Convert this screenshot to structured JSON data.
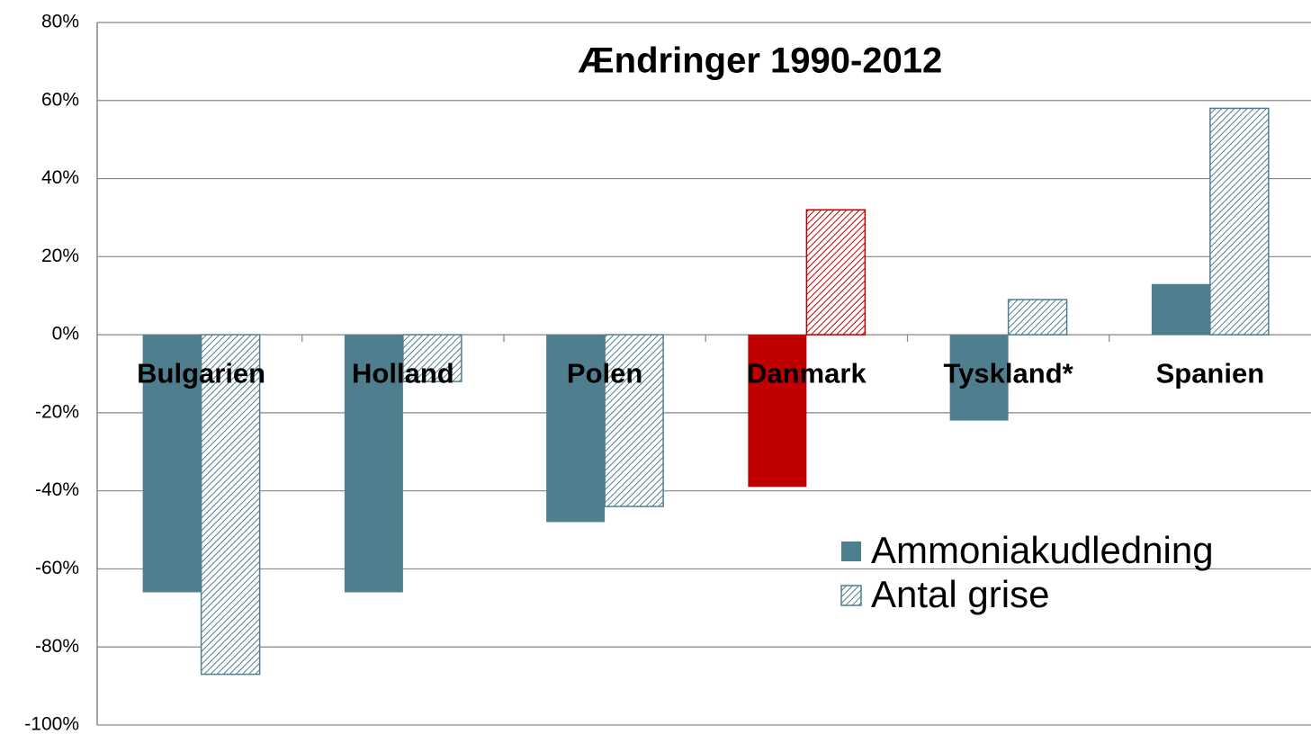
{
  "chart_data": {
    "type": "bar",
    "title": "Ændringer 1990-2012",
    "categories": [
      "Bulgarien",
      "Holland",
      "Polen",
      "Danmark",
      "Tyskland*",
      "Spanien"
    ],
    "series": [
      {
        "name": "Ammoniakudledning",
        "color": "#4f7f8e",
        "pattern": "solid",
        "point_colors": [
          "#4f7f8e",
          "#4f7f8e",
          "#4f7f8e",
          "#c00000",
          "#4f7f8e",
          "#4f7f8e"
        ],
        "values": [
          -66,
          -66,
          -48,
          -39,
          -22,
          13
        ]
      },
      {
        "name": "Antal grise",
        "color": "#4f7f8e",
        "pattern": "hatch",
        "point_colors": [
          "#4f7f8e",
          "#4f7f8e",
          "#4f7f8e",
          "#c00000",
          "#4f7f8e",
          "#4f7f8e"
        ],
        "values": [
          -87,
          -12,
          -44,
          32,
          9,
          58
        ]
      }
    ],
    "ylim": [
      -100,
      80
    ],
    "yticks": [
      {
        "value": -100,
        "label": "-100%"
      },
      {
        "value": -80,
        "label": "-80%"
      },
      {
        "value": -60,
        "label": "-60%"
      },
      {
        "value": -40,
        "label": "-40%"
      },
      {
        "value": -20,
        "label": "-20%"
      },
      {
        "value": 0,
        "label": "0%"
      },
      {
        "value": 20,
        "label": "20%"
      },
      {
        "value": 40,
        "label": "40%"
      },
      {
        "value": 60,
        "label": "60%"
      },
      {
        "value": 80,
        "label": "80%"
      }
    ],
    "grid": true,
    "legend": "lower right"
  }
}
